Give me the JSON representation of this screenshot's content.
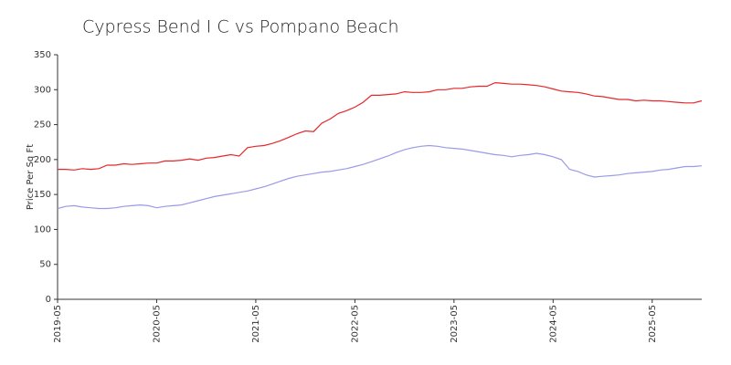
{
  "chart_data": {
    "type": "line",
    "title": "Cypress Bend I C vs Pompano Beach",
    "y_label": "Price Per Sq Ft",
    "categories": [
      "2019-05",
      null,
      null,
      null,
      null,
      null,
      null,
      null,
      null,
      null,
      null,
      null,
      "2020-05",
      null,
      null,
      null,
      null,
      null,
      null,
      null,
      null,
      null,
      null,
      null,
      "2021-05",
      null,
      null,
      null,
      null,
      null,
      null,
      null,
      null,
      null,
      null,
      null,
      "2022-05",
      null,
      null,
      null,
      null,
      null,
      null,
      null,
      null,
      null,
      null,
      null,
      "2023-05",
      null,
      null,
      null,
      null,
      null,
      null,
      null,
      null,
      null,
      null,
      null,
      "2024-05",
      null,
      null,
      null,
      null,
      null,
      null,
      null,
      null,
      null,
      null,
      null,
      "2025-05",
      null,
      null,
      null,
      null,
      null,
      null
    ],
    "series": [
      {
        "color": "#e8262a",
        "values": [
          186,
          186,
          185,
          187,
          186,
          187,
          192,
          192,
          194,
          193,
          194,
          195,
          195,
          198,
          198,
          199,
          201,
          199,
          202,
          203,
          205,
          207,
          205,
          217,
          219,
          220,
          223,
          227,
          232,
          237,
          241,
          240,
          252,
          258,
          266,
          270,
          275,
          282,
          292,
          292,
          293,
          294,
          297,
          296,
          296,
          297,
          300,
          300,
          302,
          302,
          304,
          305,
          305,
          310,
          309,
          308,
          308,
          307,
          306,
          304,
          301,
          298,
          297,
          296,
          294,
          291,
          290,
          288,
          286,
          286,
          284,
          285,
          284,
          284,
          283,
          282,
          281,
          281,
          284
        ]
      },
      {
        "color": "#9a9ae8",
        "values": [
          130,
          133,
          134,
          132,
          131,
          130,
          130,
          131,
          133,
          134,
          135,
          134,
          131,
          133,
          134,
          135,
          138,
          141,
          144,
          147,
          149,
          151,
          153,
          155,
          158,
          161,
          165,
          169,
          173,
          176,
          178,
          180,
          182,
          183,
          185,
          187,
          190,
          193,
          197,
          201,
          205,
          210,
          214,
          217,
          219,
          220,
          219,
          217,
          216,
          215,
          213,
          211,
          209,
          207,
          206,
          204,
          206,
          207,
          209,
          207,
          204,
          200,
          186,
          183,
          178,
          175,
          176,
          177,
          178,
          180,
          181,
          182,
          183,
          185,
          186,
          188,
          190,
          190,
          191
        ]
      }
    ],
    "ylim": [
      0,
      350
    ],
    "yticks": [
      0,
      50,
      100,
      150,
      200,
      250,
      300,
      350
    ],
    "grid": false
  }
}
